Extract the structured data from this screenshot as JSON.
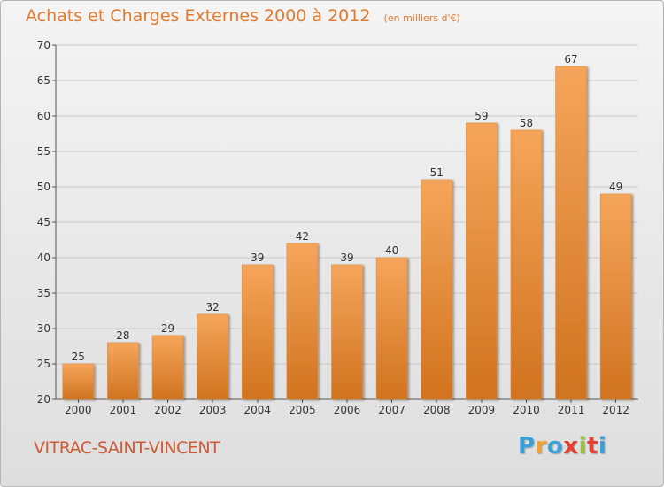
{
  "header": {
    "title": "Achats et Charges Externes 2000 à 2012",
    "unit": "(en milliers d'€)"
  },
  "footer": {
    "commune": "VITRAC-SAINT-VINCENT",
    "logo_letters": [
      "P",
      "r",
      "o",
      "x",
      "i",
      "t",
      "i"
    ],
    "logo_colors": [
      "#3aa1d8",
      "#f0a12e",
      "#3aa1d8",
      "#e53f2e",
      "#9bc33a",
      "#e53f2e",
      "#3aa1d8"
    ]
  },
  "colors": {
    "title": "#e07a2e",
    "bar_top": "#f5a55a",
    "bar_bottom": "#d0731f",
    "grid": "#c8c8c8",
    "commune": "#cc5a34"
  },
  "chart_data": {
    "type": "bar",
    "title": "Achats et Charges Externes 2000 à 2012",
    "xlabel": "",
    "ylabel": "",
    "categories": [
      "2000",
      "2001",
      "2002",
      "2003",
      "2004",
      "2005",
      "2006",
      "2007",
      "2008",
      "2009",
      "2010",
      "2011",
      "2012"
    ],
    "values": [
      25,
      28,
      29,
      32,
      39,
      42,
      39,
      40,
      51,
      59,
      58,
      67,
      49
    ],
    "ylim": [
      20,
      70
    ],
    "yticks": [
      20,
      25,
      30,
      35,
      40,
      45,
      50,
      55,
      60,
      65,
      70
    ],
    "grid": true
  }
}
